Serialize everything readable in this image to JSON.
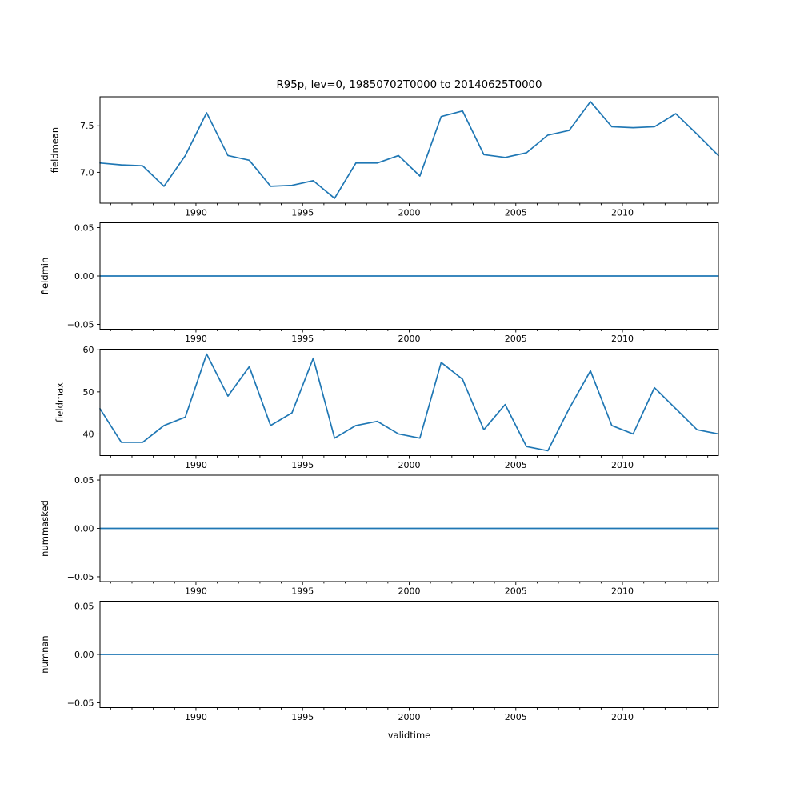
{
  "figure": {
    "title": "R95p, lev=0, 19850702T0000 to 20140625T0000",
    "xlabel": "validtime"
  },
  "chart_data": {
    "type": "line",
    "title": "R95p, lev=0, 19850702T0000 to 20140625T0000",
    "xlabel": "validtime",
    "line_color": "#1f77b4",
    "background_color": "#ffffff",
    "grid": false,
    "legend": "none",
    "x": [
      1985.5,
      1986.5,
      1987.5,
      1988.5,
      1989.5,
      1990.5,
      1991.5,
      1992.5,
      1993.5,
      1994.5,
      1995.5,
      1996.5,
      1997.5,
      1998.5,
      1999.5,
      2000.5,
      2001.5,
      2002.5,
      2003.5,
      2004.5,
      2005.5,
      2006.5,
      2007.5,
      2008.5,
      2009.5,
      2010.5,
      2011.5,
      2012.5,
      2013.5,
      2014.5
    ],
    "xlim": [
      1985.5,
      2014.5
    ],
    "xticks": [
      1990,
      1995,
      2000,
      2005,
      2010
    ],
    "xtick_labels": [
      "1990",
      "1995",
      "2000",
      "2005",
      "2010"
    ],
    "subplots": [
      {
        "ylabel": "fieldmean",
        "ylim": [
          6.668,
          7.812
        ],
        "yticks": [
          {
            "v": 7.0,
            "label": "7.0"
          },
          {
            "v": 7.5,
            "label": "7.5"
          }
        ],
        "values": [
          7.1,
          7.08,
          7.07,
          6.85,
          7.18,
          7.64,
          7.18,
          7.13,
          6.85,
          6.86,
          6.91,
          6.72,
          7.1,
          7.1,
          7.18,
          6.96,
          7.6,
          7.66,
          7.19,
          7.16,
          7.21,
          7.4,
          7.45,
          7.76,
          7.49,
          7.48,
          7.49,
          7.63,
          7.41,
          7.18
        ]
      },
      {
        "ylabel": "fieldmin",
        "ylim": [
          -0.055,
          0.055
        ],
        "yticks": [
          {
            "v": -0.05,
            "label": "−0.05"
          },
          {
            "v": 0.0,
            "label": "0.00"
          },
          {
            "v": 0.05,
            "label": "0.05"
          }
        ],
        "values": [
          0,
          0,
          0,
          0,
          0,
          0,
          0,
          0,
          0,
          0,
          0,
          0,
          0,
          0,
          0,
          0,
          0,
          0,
          0,
          0,
          0,
          0,
          0,
          0,
          0,
          0,
          0,
          0,
          0,
          0
        ]
      },
      {
        "ylabel": "fieldmax",
        "ylim": [
          34.85,
          60.15
        ],
        "yticks": [
          {
            "v": 40,
            "label": "40"
          },
          {
            "v": 50,
            "label": "50"
          },
          {
            "v": 60,
            "label": "60"
          }
        ],
        "values": [
          46,
          38,
          38,
          42,
          44,
          59,
          49,
          56,
          42,
          45,
          58,
          39,
          42,
          43,
          40,
          39,
          57,
          53,
          41,
          47,
          37,
          36,
          46,
          55,
          42,
          40,
          51,
          46,
          41,
          40
        ]
      },
      {
        "ylabel": "nummasked",
        "ylim": [
          -0.055,
          0.055
        ],
        "yticks": [
          {
            "v": -0.05,
            "label": "−0.05"
          },
          {
            "v": 0.0,
            "label": "0.00"
          },
          {
            "v": 0.05,
            "label": "0.05"
          }
        ],
        "values": [
          0,
          0,
          0,
          0,
          0,
          0,
          0,
          0,
          0,
          0,
          0,
          0,
          0,
          0,
          0,
          0,
          0,
          0,
          0,
          0,
          0,
          0,
          0,
          0,
          0,
          0,
          0,
          0,
          0,
          0
        ]
      },
      {
        "ylabel": "numnan",
        "ylim": [
          -0.055,
          0.055
        ],
        "yticks": [
          {
            "v": -0.05,
            "label": "−0.05"
          },
          {
            "v": 0.0,
            "label": "0.00"
          },
          {
            "v": 0.05,
            "label": "0.05"
          }
        ],
        "values": [
          0,
          0,
          0,
          0,
          0,
          0,
          0,
          0,
          0,
          0,
          0,
          0,
          0,
          0,
          0,
          0,
          0,
          0,
          0,
          0,
          0,
          0,
          0,
          0,
          0,
          0,
          0,
          0,
          0,
          0
        ]
      }
    ]
  }
}
